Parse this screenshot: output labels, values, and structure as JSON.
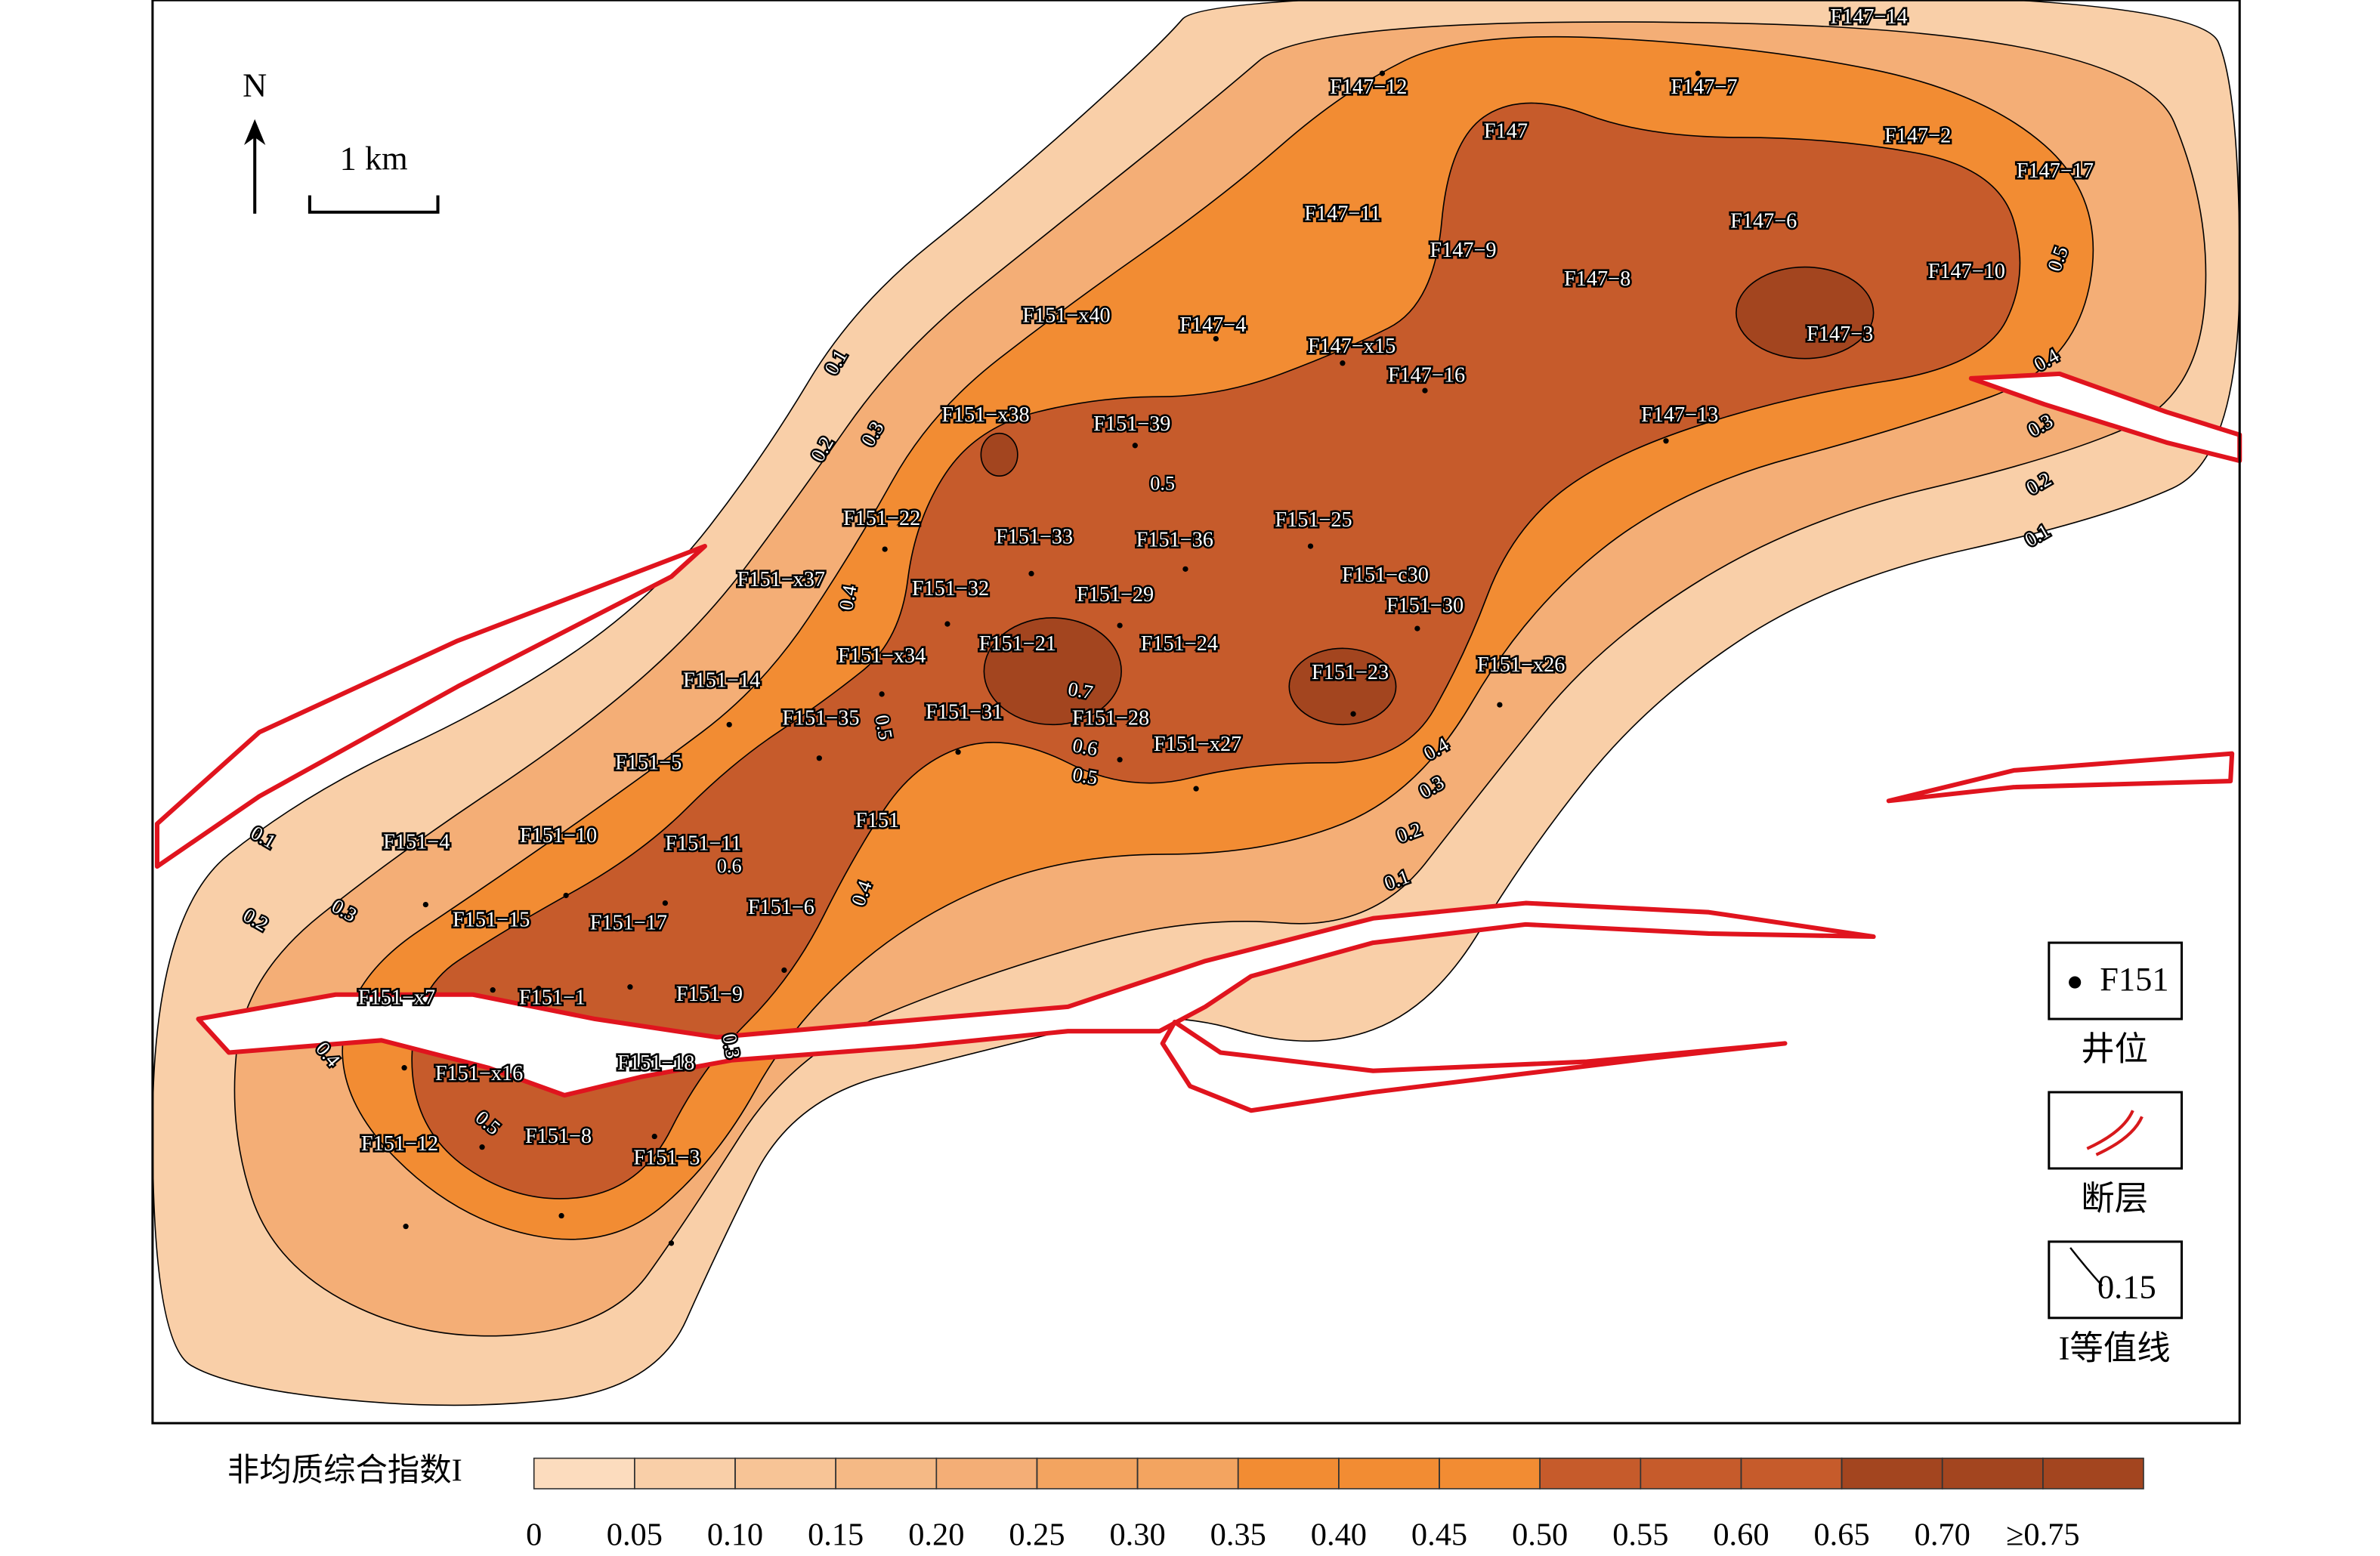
{
  "map": {
    "north": "N",
    "scale_bar": "1 km",
    "wells": [
      "F147−14",
      "F147−12",
      "F147−7",
      "F147",
      "F147−2",
      "F147−17",
      "F147−11",
      "F147−9",
      "F147−6",
      "F147−8",
      "F147−10",
      "F147−3",
      "F151−x40",
      "F147−4",
      "F147−x15",
      "F147−16",
      "F147−13",
      "F151−x38",
      "F151−39",
      "F151−22",
      "F151−33",
      "F151−36",
      "F151−25",
      "F151−x37",
      "F151−32",
      "F151−29",
      "F151−c30",
      "F151−30",
      "F151−21",
      "F151−24",
      "F151−x34",
      "F151−23",
      "F151−x26",
      "F151−14",
      "F151−35",
      "F151−31",
      "F151−28",
      "F151−x27",
      "F151−5",
      "F151",
      "F151−4",
      "F151−10",
      "F151−11",
      "F151−15",
      "F151−17",
      "F151−6",
      "F151−x7",
      "F151−1",
      "F151−9",
      "F151−18",
      "F151−x16",
      "F151−8",
      "F151−12",
      "F151−3"
    ],
    "contour_labels": [
      "0.1",
      "0.2",
      "0.3",
      "0.4",
      "0.5",
      "0.6",
      "0.4",
      "0.1",
      "0.2",
      "0.3",
      "0.4",
      "0.5",
      "0.3",
      "0.7",
      "0.6",
      "0.5",
      "0.5",
      "0.4",
      "0.3",
      "0.2",
      "0.1",
      "0.5",
      "0.4",
      "0.3",
      "0.2",
      "0.1"
    ],
    "legend": {
      "well_sample": "F151",
      "well": "井位",
      "fault": "断层",
      "contour_sample": "0.15",
      "contour": "I等值线"
    },
    "colorbar": {
      "title": "非均质综合指数I",
      "colors": [
        "#fcdcbe",
        "#f9cfa8",
        "#f7c496",
        "#f5b985",
        "#f4ae76",
        "#f3a460",
        "#f3a460",
        "#f28c33",
        "#f28c33",
        "#f28c33",
        "#c65b2b",
        "#c65b2b",
        "#c65b2b",
        "#a3451f",
        "#a3451f",
        "#a3451f"
      ],
      "ticks": [
        0,
        0.05,
        {
          "value": 0.1,
          "label": "0.10"
        },
        0.15,
        {
          "value": 0.2,
          "label": "0.20"
        },
        0.25,
        {
          "value": 0.3,
          "label": "0.30"
        },
        0.35,
        {
          "value": 0.4,
          "label": "0.40"
        },
        0.45,
        {
          "value": 0.5,
          "label": "0.50"
        },
        0.55,
        {
          "value": 0.6,
          "label": "0.60"
        },
        0.65,
        {
          "value": 0.7,
          "label": "0.70"
        },
        {
          "value": 0.75,
          "label": "≥0.75"
        }
      ]
    }
  }
}
